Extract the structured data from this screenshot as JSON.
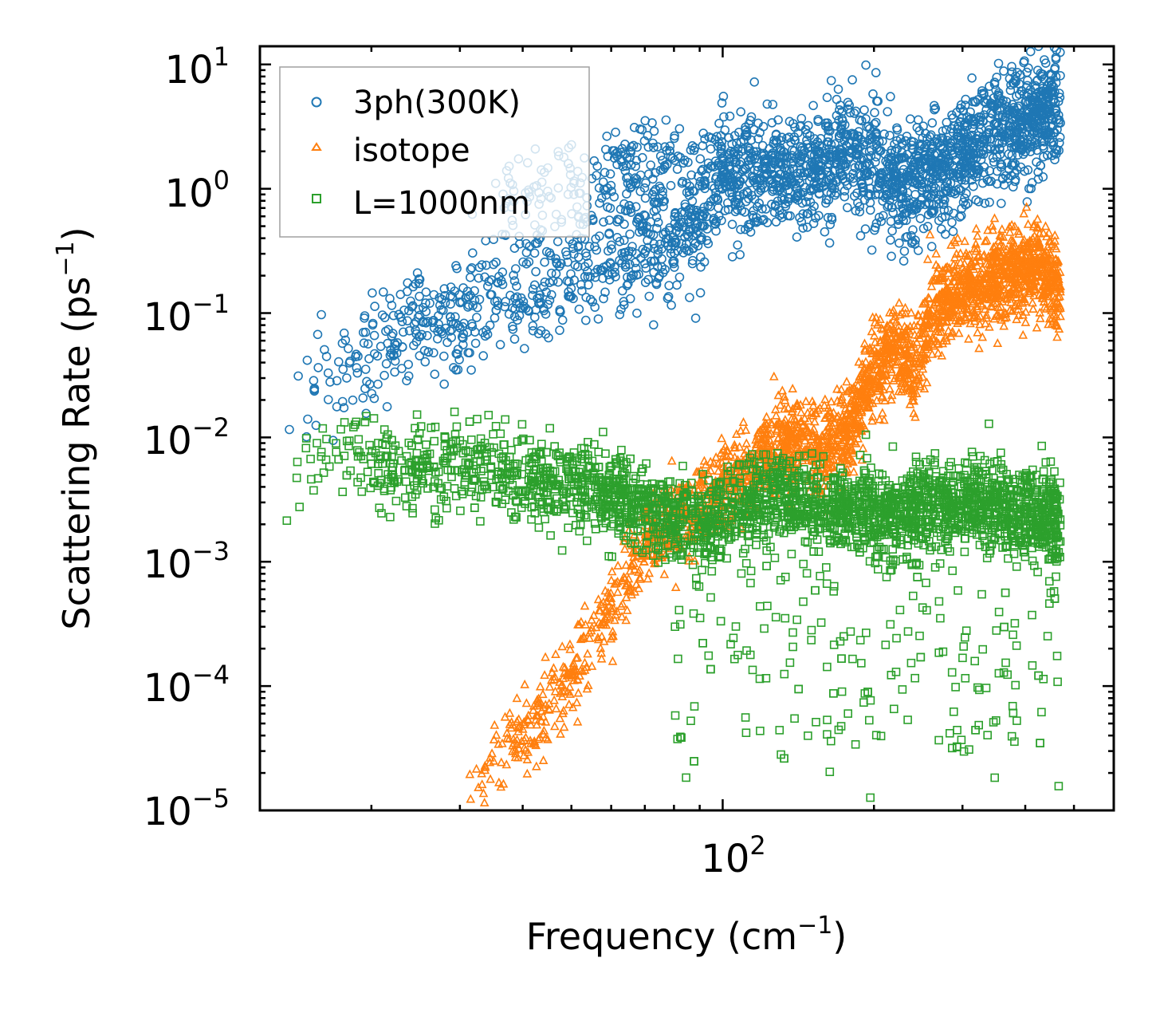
{
  "chart_data": {
    "type": "scatter",
    "title": "",
    "xlabel": "Frequency (cm",
    "xlabel_sup": "−1",
    "xlabel_end": ")",
    "ylabel": "Scattering Rate (ps",
    "ylabel_sup": "−1",
    "ylabel_end": ")",
    "xscale": "log",
    "yscale": "log",
    "xlim": [
      12,
      600
    ],
    "ylim": [
      1e-05,
      14
    ],
    "x_ticks": [
      {
        "base": "10",
        "exp": "2",
        "value": 100
      }
    ],
    "y_ticks": [
      {
        "base": "10",
        "exp": "1",
        "value": 10
      },
      {
        "base": "10",
        "exp": "0",
        "value": 1
      },
      {
        "base": "10",
        "exp": "−1",
        "value": 0.1
      },
      {
        "base": "10",
        "exp": "−2",
        "value": 0.01
      },
      {
        "base": "10",
        "exp": "−3",
        "value": 0.001
      },
      {
        "base": "10",
        "exp": "−4",
        "value": 0.0001
      },
      {
        "base": "10",
        "exp": "−5",
        "value": 1e-05
      }
    ],
    "legend": {
      "position": "top-left"
    },
    "series": [
      {
        "name": "3ph(300K)",
        "marker": "circle",
        "color": "#1f77b4",
        "trend": [
          [
            13.3,
            0.018
          ],
          [
            16,
            0.033
          ],
          [
            20,
            0.05
          ],
          [
            25,
            0.08
          ],
          [
            30,
            0.1
          ],
          [
            35,
            0.12
          ],
          [
            40,
            0.15
          ],
          [
            45,
            0.19
          ],
          [
            50,
            0.22
          ],
          [
            55,
            0.25
          ],
          [
            60,
            0.28
          ],
          [
            70,
            0.31
          ],
          [
            80,
            0.35
          ],
          [
            90,
            0.55
          ],
          [
            100,
            1.2
          ],
          [
            120,
            1.3
          ],
          [
            140,
            1.4
          ],
          [
            160,
            1.7
          ],
          [
            180,
            1.9
          ],
          [
            200,
            1.4
          ],
          [
            240,
            1.2
          ],
          [
            280,
            1.5
          ],
          [
            320,
            2.2
          ],
          [
            360,
            3.0
          ],
          [
            400,
            3.6
          ],
          [
            470,
            4.2
          ]
        ],
        "upper_branch": [
          [
            35,
            0.6
          ],
          [
            40,
            0.9
          ],
          [
            45,
            0.95
          ],
          [
            50,
            1.0
          ],
          [
            55,
            1.1
          ],
          [
            60,
            1.3
          ],
          [
            70,
            1.4
          ],
          [
            80,
            1.3
          ],
          [
            90,
            1.2
          ],
          [
            100,
            1.5
          ],
          [
            110,
            1.6
          ]
        ],
        "spread": 0.45,
        "count": 2600
      },
      {
        "name": "isotope",
        "marker": "triangle",
        "color": "#ff7f0e",
        "trend": [
          [
            30,
            1.2e-05
          ],
          [
            33,
            1.8e-05
          ],
          [
            36,
            2.8e-05
          ],
          [
            40,
            4e-05
          ],
          [
            45,
            7e-05
          ],
          [
            50,
            0.00012
          ],
          [
            55,
            0.00022
          ],
          [
            60,
            0.0004
          ],
          [
            65,
            0.0008
          ],
          [
            70,
            0.0014
          ],
          [
            75,
            0.0018
          ],
          [
            85,
            0.0025
          ],
          [
            95,
            0.0035
          ],
          [
            110,
            0.005
          ],
          [
            125,
            0.008
          ],
          [
            140,
            0.009
          ],
          [
            160,
            0.007
          ],
          [
            180,
            0.012
          ],
          [
            200,
            0.035
          ],
          [
            220,
            0.05
          ],
          [
            240,
            0.035
          ],
          [
            260,
            0.1
          ],
          [
            300,
            0.15
          ],
          [
            360,
            0.2
          ],
          [
            420,
            0.25
          ],
          [
            470,
            0.15
          ]
        ],
        "spread": 0.35,
        "count": 2600
      },
      {
        "name": "L=1000nm",
        "marker": "square",
        "color": "#2ca02c",
        "trend": [
          [
            13.3,
            0.0058
          ],
          [
            16,
            0.0065
          ],
          [
            20,
            0.006
          ],
          [
            25,
            0.0055
          ],
          [
            30,
            0.006
          ],
          [
            35,
            0.0055
          ],
          [
            40,
            0.005
          ],
          [
            45,
            0.0045
          ],
          [
            55,
            0.004
          ],
          [
            65,
            0.003
          ],
          [
            80,
            0.0022
          ],
          [
            95,
            0.002
          ],
          [
            110,
            0.0025
          ],
          [
            130,
            0.0035
          ],
          [
            160,
            0.0025
          ],
          [
            200,
            0.0025
          ],
          [
            260,
            0.003
          ],
          [
            330,
            0.0028
          ],
          [
            400,
            0.0025
          ],
          [
            470,
            0.002
          ]
        ],
        "spread": 0.35,
        "count": 3000
      }
    ]
  }
}
